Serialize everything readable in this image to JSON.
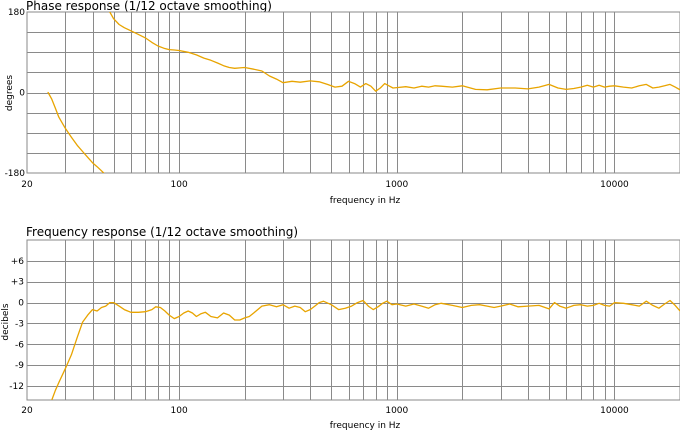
{
  "chart_data": [
    {
      "type": "line",
      "title": "Phase response (1/12 octave smoothing)",
      "xlabel": "frequency in Hz",
      "ylabel": "degrees",
      "x_scale": "log",
      "xlim": [
        20,
        20000
      ],
      "ylim": [
        -180,
        180
      ],
      "x_tick_labels": [
        {
          "value": 20,
          "label": "20"
        },
        {
          "value": 100,
          "label": "100"
        },
        {
          "value": 1000,
          "label": "1000"
        },
        {
          "value": 10000,
          "label": "10000"
        }
      ],
      "y_tick_labels": [
        {
          "value": 180,
          "label": "180"
        },
        {
          "value": 0,
          "label": "0"
        },
        {
          "value": -180,
          "label": "-180"
        }
      ],
      "grid": true,
      "series_color": "#e8a400",
      "series": [
        {
          "segments": [
            [
              [
                25,
                0
              ],
              [
                26,
                -15
              ],
              [
                27,
                -35
              ],
              [
                28,
                -55
              ],
              [
                30,
                -80
              ],
              [
                32,
                -100
              ],
              [
                34,
                -118
              ],
              [
                36,
                -132
              ],
              [
                38,
                -145
              ],
              [
                40,
                -157
              ],
              [
                42,
                -166
              ],
              [
                44,
                -175
              ],
              [
                45,
                -180
              ]
            ],
            [
              [
                48,
                180
              ],
              [
                50,
                165
              ],
              [
                53,
                152
              ],
              [
                56,
                145
              ],
              [
                60,
                138
              ],
              [
                65,
                130
              ],
              [
                70,
                122
              ],
              [
                75,
                112
              ],
              [
                80,
                104
              ],
              [
                85,
                99
              ],
              [
                90,
                96
              ],
              [
                95,
                95
              ],
              [
                100,
                94
              ],
              [
                110,
                90
              ],
              [
                120,
                84
              ],
              [
                130,
                77
              ],
              [
                140,
                72
              ],
              [
                150,
                66
              ],
              [
                160,
                60
              ],
              [
                170,
                56
              ],
              [
                180,
                54
              ],
              [
                190,
                55
              ],
              [
                200,
                56
              ],
              [
                220,
                52
              ],
              [
                240,
                48
              ],
              [
                260,
                37
              ],
              [
                280,
                30
              ],
              [
                300,
                22
              ],
              [
                330,
                25
              ],
              [
                360,
                23
              ],
              [
                400,
                26
              ],
              [
                440,
                24
              ],
              [
                480,
                18
              ],
              [
                520,
                12
              ],
              [
                560,
                14
              ],
              [
                600,
                25
              ],
              [
                640,
                20
              ],
              [
                680,
                12
              ],
              [
                720,
                20
              ],
              [
                760,
                14
              ],
              [
                800,
                3
              ],
              [
                840,
                10
              ],
              [
                880,
                20
              ],
              [
                920,
                15
              ],
              [
                960,
                10
              ],
              [
                1000,
                11
              ],
              [
                1100,
                13
              ],
              [
                1200,
                10
              ],
              [
                1300,
                14
              ],
              [
                1400,
                12
              ],
              [
                1500,
                15
              ],
              [
                1600,
                14
              ],
              [
                1800,
                12
              ],
              [
                2000,
                15
              ],
              [
                2300,
                7
              ],
              [
                2600,
                6
              ],
              [
                3000,
                10
              ],
              [
                3500,
                10
              ],
              [
                4000,
                8
              ],
              [
                4500,
                12
              ],
              [
                5000,
                18
              ],
              [
                5500,
                10
              ],
              [
                6000,
                7
              ],
              [
                6500,
                9
              ],
              [
                7000,
                12
              ],
              [
                7500,
                16
              ],
              [
                8000,
                12
              ],
              [
                8500,
                16
              ],
              [
                9000,
                12
              ],
              [
                9500,
                14
              ],
              [
                10000,
                15
              ],
              [
                11000,
                12
              ],
              [
                12000,
                10
              ],
              [
                13000,
                15
              ],
              [
                14000,
                18
              ],
              [
                15000,
                10
              ],
              [
                16000,
                12
              ],
              [
                17000,
                15
              ],
              [
                18000,
                18
              ],
              [
                19000,
                12
              ],
              [
                20000,
                6
              ]
            ]
          ]
        }
      ]
    },
    {
      "type": "line",
      "title": "Frequency response (1/12 octave smoothing)",
      "xlabel": "frequency in Hz",
      "ylabel": "decibels",
      "x_scale": "log",
      "xlim": [
        20,
        20000
      ],
      "ylim": [
        -14,
        9
      ],
      "x_tick_labels": [
        {
          "value": 20,
          "label": "20"
        },
        {
          "value": 100,
          "label": "100"
        },
        {
          "value": 1000,
          "label": "1000"
        },
        {
          "value": 10000,
          "label": "10000"
        }
      ],
      "y_tick_labels": [
        {
          "value": 6,
          "label": "+6"
        },
        {
          "value": 3,
          "label": "+3"
        },
        {
          "value": 0,
          "label": "0"
        },
        {
          "value": -3,
          "label": "-3"
        },
        {
          "value": -6,
          "label": "-6"
        },
        {
          "value": -9,
          "label": "-9"
        },
        {
          "value": -12,
          "label": "-12"
        }
      ],
      "grid": true,
      "series_color": "#e8a400",
      "series": [
        {
          "segments": [
            [
              [
                26,
                -14
              ],
              [
                27,
                -12.6
              ],
              [
                28,
                -11.5
              ],
              [
                30,
                -9.5
              ],
              [
                32,
                -7.5
              ],
              [
                34,
                -5
              ],
              [
                36,
                -2.8
              ],
              [
                38,
                -1.8
              ],
              [
                40,
                -1
              ],
              [
                42,
                -1.2
              ],
              [
                44,
                -0.7
              ],
              [
                46,
                -0.5
              ],
              [
                48,
                0
              ],
              [
                50,
                0
              ],
              [
                53,
                -0.5
              ],
              [
                56,
                -1
              ],
              [
                60,
                -1.4
              ],
              [
                65,
                -1.4
              ],
              [
                70,
                -1.3
              ],
              [
                75,
                -1
              ],
              [
                78,
                -0.6
              ],
              [
                82,
                -0.7
              ],
              [
                86,
                -1.2
              ],
              [
                90,
                -1.8
              ],
              [
                95,
                -2.3
              ],
              [
                100,
                -2
              ],
              [
                105,
                -1.5
              ],
              [
                110,
                -1.2
              ],
              [
                115,
                -1.5
              ],
              [
                120,
                -2
              ],
              [
                126,
                -1.6
              ],
              [
                132,
                -1.4
              ],
              [
                140,
                -2
              ],
              [
                150,
                -2.2
              ],
              [
                160,
                -1.5
              ],
              [
                170,
                -1.8
              ],
              [
                180,
                -2.5
              ],
              [
                190,
                -2.5
              ],
              [
                200,
                -2.2
              ],
              [
                210,
                -2
              ],
              [
                220,
                -1.5
              ],
              [
                240,
                -0.5
              ],
              [
                260,
                -0.3
              ],
              [
                280,
                -0.6
              ],
              [
                300,
                -0.3
              ],
              [
                320,
                -0.8
              ],
              [
                340,
                -0.5
              ],
              [
                360,
                -0.7
              ],
              [
                380,
                -1.3
              ],
              [
                400,
                -1
              ],
              [
                420,
                -0.5
              ],
              [
                440,
                0
              ],
              [
                460,
                0.2
              ],
              [
                500,
                -0.3
              ],
              [
                540,
                -1
              ],
              [
                580,
                -0.8
              ],
              [
                620,
                -0.5
              ],
              [
                660,
                0
              ],
              [
                700,
                0.3
              ],
              [
                740,
                -0.5
              ],
              [
                780,
                -1
              ],
              [
                820,
                -0.6
              ],
              [
                860,
                -0.1
              ],
              [
                900,
                0.2
              ],
              [
                950,
                -0.3
              ],
              [
                1000,
                -0.2
              ],
              [
                1100,
                -0.5
              ],
              [
                1200,
                -0.2
              ],
              [
                1300,
                -0.5
              ],
              [
                1400,
                -0.8
              ],
              [
                1500,
                -0.3
              ],
              [
                1600,
                -0.1
              ],
              [
                1800,
                -0.4
              ],
              [
                2000,
                -0.7
              ],
              [
                2200,
                -0.4
              ],
              [
                2400,
                -0.3
              ],
              [
                2600,
                -0.5
              ],
              [
                2800,
                -0.7
              ],
              [
                3000,
                -0.5
              ],
              [
                3300,
                -0.2
              ],
              [
                3600,
                -0.6
              ],
              [
                4000,
                -0.5
              ],
              [
                4500,
                -0.4
              ],
              [
                5000,
                -0.9
              ],
              [
                5300,
                0
              ],
              [
                5600,
                -0.5
              ],
              [
                6000,
                -0.8
              ],
              [
                6500,
                -0.4
              ],
              [
                7000,
                -0.3
              ],
              [
                7500,
                -0.5
              ],
              [
                8000,
                -0.4
              ],
              [
                8500,
                -0.1
              ],
              [
                9000,
                -0.4
              ],
              [
                9500,
                -0.5
              ],
              [
                10000,
                0
              ],
              [
                11000,
                -0.1
              ],
              [
                12000,
                -0.3
              ],
              [
                13000,
                -0.5
              ],
              [
                14000,
                0.2
              ],
              [
                15000,
                -0.4
              ],
              [
                16000,
                -0.8
              ],
              [
                17000,
                -0.2
              ],
              [
                18000,
                0.3
              ],
              [
                19000,
                -0.4
              ],
              [
                20000,
                -1.2
              ]
            ]
          ]
        }
      ]
    }
  ]
}
